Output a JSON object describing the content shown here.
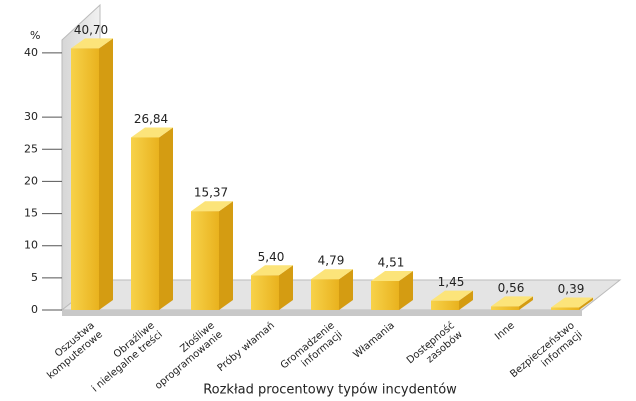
{
  "chart_data": {
    "type": "bar3d",
    "ylabel": "%",
    "xlabel": "Rozkład procentowy typów incydentów",
    "categories": [
      [
        "Oszustwa",
        "komputerowe"
      ],
      [
        "Obraźliwe",
        "i nielegalne treści"
      ],
      [
        "Złośliwe",
        "oprogramowanie"
      ],
      [
        "Próby włamań"
      ],
      [
        "Gromadzenie",
        "informacji"
      ],
      [
        "Włamania"
      ],
      [
        "Dostępność",
        "zasobów"
      ],
      [
        "Inne"
      ],
      [
        "Bezpieczeństwo",
        "informacji"
      ]
    ],
    "values": [
      40.7,
      26.84,
      15.37,
      5.4,
      4.79,
      4.51,
      1.45,
      0.56,
      0.39
    ],
    "value_labels": [
      "40,70",
      "26,84",
      "15,37",
      "5,40",
      "4,79",
      "4,51",
      "1,45",
      "0,56",
      "0,39"
    ],
    "color": "#f2c230",
    "ylim": [
      0,
      42
    ],
    "yticks": [
      0,
      5,
      10,
      15,
      20,
      25,
      30,
      40
    ]
  }
}
